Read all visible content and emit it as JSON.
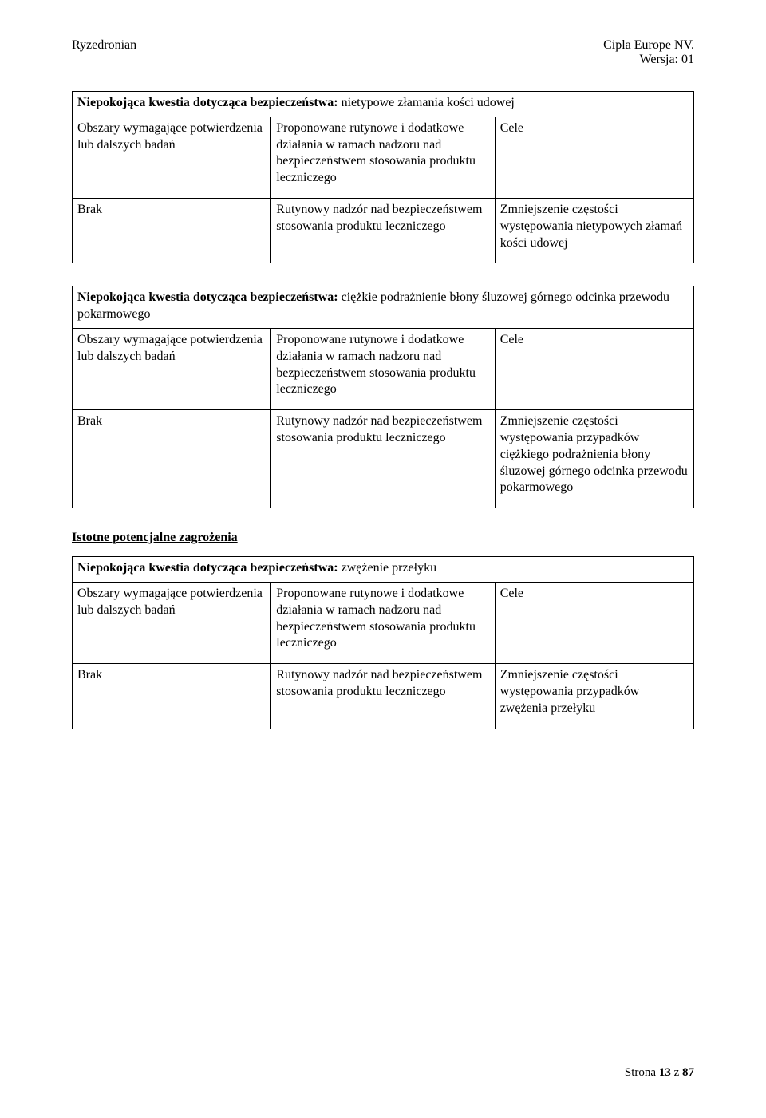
{
  "header": {
    "left": "Ryzedronian",
    "right_line1": "Cipla Europe NV.",
    "right_line2": "Wersja: 01"
  },
  "labels": {
    "title_prefix": "Niepokojąca kwestia dotycząca bezpieczeństwa: ",
    "col1_header": "Obszary wymagające potwierdzenia lub dalszych badań",
    "col2_header": "Proponowane rutynowe i dodatkowe działania w ramach nadzoru nad bezpieczeństwem stosowania produktu leczniczego",
    "col3_header": "Cele",
    "brak": "Brak",
    "rutynowy": "Rutynowy nadzór nad bezpieczeństwem stosowania produktu leczniczego",
    "section_heading": "Istotne potencjalne zagrożenia"
  },
  "tables": [
    {
      "title_suffix": "nietypowe złamania kości udowej",
      "result": "Zmniejszenie częstości występowania nietypowych złamań kości udowej"
    },
    {
      "title_suffix": "ciężkie podrażnienie błony śluzowej górnego odcinka przewodu pokarmowego",
      "result": "Zmniejszenie częstości występowania przypadków ciężkiego podrażnienia błony śluzowej górnego odcinka przewodu pokarmowego"
    },
    {
      "title_suffix": "zwężenie przełyku",
      "result": "Zmniejszenie częstości występowania przypadków zwężenia przełyku"
    }
  ],
  "footer": {
    "strona": "Strona ",
    "num": "13",
    "z": " z ",
    "total": "87"
  }
}
